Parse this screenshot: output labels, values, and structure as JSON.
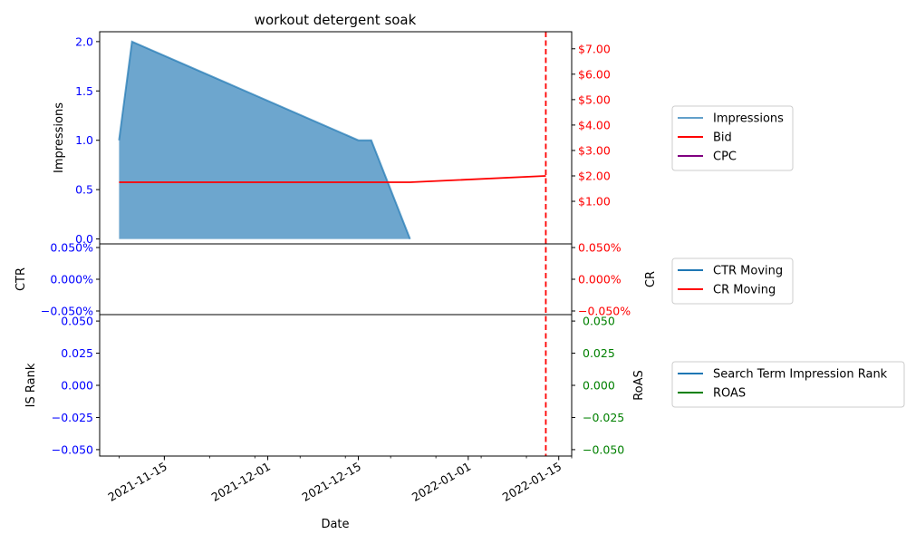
{
  "chart_data": [
    {
      "panel": "top",
      "type": "area",
      "title": "workout detergent soak",
      "ylabel_left": "Impressions",
      "ylabel_right": "",
      "ylim_left": [
        -0.05,
        2.1
      ],
      "ylim_right": [
        -0.675,
        7.67
      ],
      "yticks_left": [
        "0.0",
        "0.5",
        "1.0",
        "1.5",
        "2.0"
      ],
      "ytick_values_left": [
        0,
        0.5,
        1.0,
        1.5,
        2.0
      ],
      "yticks_right": [
        "$1.00",
        "$2.00",
        "$3.00",
        "$4.00",
        "$5.00",
        "$6.00",
        "$7.00"
      ],
      "ytick_values_right": [
        1,
        2,
        3,
        4,
        5,
        6,
        7
      ],
      "series": [
        {
          "name": "Impressions",
          "axis": "left",
          "x": [
            "2021-11-08",
            "2021-11-10",
            "2021-12-15",
            "2021-12-17",
            "2021-12-23"
          ],
          "values": [
            1.0,
            2.0,
            1.0,
            1.0,
            0.0
          ]
        },
        {
          "name": "Bid",
          "axis": "right",
          "x": [
            "2021-11-08",
            "2021-12-23",
            "2022-01-13"
          ],
          "values": [
            1.75,
            1.75,
            2.0
          ]
        },
        {
          "name": "CPC",
          "axis": "right",
          "x": [],
          "values": []
        }
      ],
      "legend": [
        "Impressions",
        "Bid",
        "CPC"
      ],
      "legend_position": "right"
    },
    {
      "panel": "middle",
      "type": "line",
      "ylabel_left": "CTR",
      "ylabel_right": "CR",
      "yticks_left": [
        "−0.050%",
        "0.000%",
        "0.050%"
      ],
      "yticks_right": [
        "−0.050%",
        "0.000%",
        "0.050%"
      ],
      "ylim": [
        -0.05,
        0.05
      ],
      "series": [
        {
          "name": "CTR Moving",
          "axis": "left",
          "x": [],
          "values": []
        },
        {
          "name": "CR Moving",
          "axis": "right",
          "x": [],
          "values": []
        }
      ],
      "legend": [
        "CTR Moving",
        "CR Moving"
      ],
      "legend_position": "right"
    },
    {
      "panel": "bottom",
      "type": "line",
      "xlabel": "Date",
      "ylabel_left": "IS Rank",
      "ylabel_right": "RoAS",
      "yticks_left": [
        "−0.050",
        "−0.025",
        "0.000",
        "0.025",
        "0.050"
      ],
      "yticks_right": [
        "−0.050",
        "−0.025",
        "0.000",
        "0.025",
        "0.050"
      ],
      "ylim": [
        -0.055,
        0.055
      ],
      "xticks": [
        "2021-11-15",
        "2021-12-01",
        "2021-12-15",
        "2022-01-01",
        "2022-01-15"
      ],
      "xlim": [
        "2021-11-05",
        "2022-01-17"
      ],
      "series": [
        {
          "name": "Search Term Impression Rank",
          "axis": "left",
          "x": [],
          "values": []
        },
        {
          "name": "ROAS",
          "axis": "right",
          "x": [],
          "values": []
        }
      ],
      "legend": [
        "Search Term Impression Rank",
        "ROAS"
      ],
      "legend_position": "right"
    }
  ],
  "marker": {
    "date": "2022-01-13",
    "color": "#ff0000",
    "style": "dashed"
  },
  "colors": {
    "impressions": "#1f77b4",
    "bid": "#ff0000",
    "cpc": "#800080",
    "ctr": "#1f77b4",
    "cr": "#ff0000",
    "is_rank": "#1f77b4",
    "roas": "#008000",
    "left_axis_ticks": "#0000ff",
    "right_axis_ticks_top": "#ff0000",
    "right_axis_ticks_mid": "#ff0000",
    "right_axis_ticks_bottom": "#008000"
  }
}
